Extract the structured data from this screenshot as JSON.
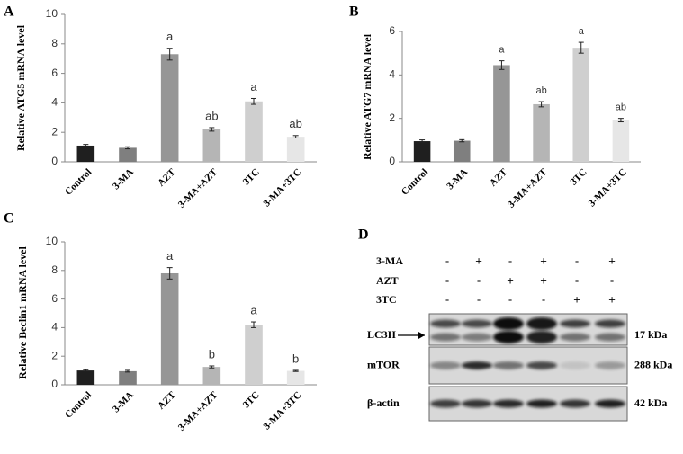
{
  "chart_data": [
    {
      "type": "bar",
      "label": "A",
      "y_label": "Relative ATG5 mRNA level",
      "categories": [
        "Control",
        "3-MA",
        "AZT",
        "3-MA+AZT",
        "3TC",
        "3-MA+3TC"
      ],
      "values": [
        1.1,
        0.95,
        7.3,
        2.2,
        4.1,
        1.7
      ],
      "errors": [
        0.08,
        0.07,
        0.4,
        0.12,
        0.2,
        0.08
      ],
      "annotations": [
        null,
        null,
        "a",
        "ab",
        "a",
        "ab"
      ],
      "colors": [
        "#1f1f1f",
        "#7f7f7f",
        "#969696",
        "#b5b5b5",
        "#cfcfcf",
        "#e6e6e6"
      ],
      "ylim": [
        0,
        10
      ],
      "yticks": [
        0,
        2,
        4,
        6,
        8,
        10
      ]
    },
    {
      "type": "bar",
      "label": "B",
      "y_label": "Relative ATG7 mRNA level",
      "categories": [
        "Control",
        "3-MA",
        "AZT",
        "3-MA+AZT",
        "3TC",
        "3-MA+3TC"
      ],
      "values": [
        0.95,
        0.97,
        4.45,
        2.65,
        5.25,
        1.92
      ],
      "errors": [
        0.06,
        0.05,
        0.2,
        0.12,
        0.25,
        0.08
      ],
      "annotations": [
        null,
        null,
        "a",
        "ab",
        "a",
        "ab"
      ],
      "colors": [
        "#1f1f1f",
        "#7f7f7f",
        "#969696",
        "#b5b5b5",
        "#cfcfcf",
        "#e6e6e6"
      ],
      "ylim": [
        0,
        6
      ],
      "yticks": [
        0,
        2,
        4,
        6
      ]
    },
    {
      "type": "bar",
      "label": "C",
      "y_label": "Relative Beclin1 mRNA level",
      "categories": [
        "Control",
        "3-MA",
        "AZT",
        "3-MA+AZT",
        "3TC",
        "3-MA+3TC"
      ],
      "values": [
        1.0,
        0.95,
        7.8,
        1.25,
        4.2,
        0.97
      ],
      "errors": [
        0.05,
        0.06,
        0.4,
        0.07,
        0.2,
        0.04
      ],
      "annotations": [
        null,
        null,
        "a",
        "b",
        "a",
        "b"
      ],
      "colors": [
        "#1f1f1f",
        "#7f7f7f",
        "#969696",
        "#b5b5b5",
        "#cfcfcf",
        "#e6e6e6"
      ],
      "ylim": [
        0,
        10
      ],
      "yticks": [
        0,
        2,
        4,
        6,
        8,
        10
      ]
    }
  ],
  "blot": {
    "label": "D",
    "treatments": [
      {
        "name": "3-MA",
        "signs": [
          "-",
          "+",
          "-",
          "+",
          "-",
          "+"
        ]
      },
      {
        "name": "AZT",
        "signs": [
          "-",
          "-",
          "+",
          "+",
          "-",
          "-"
        ]
      },
      {
        "name": "3TC",
        "signs": [
          "-",
          "-",
          "-",
          "-",
          "+",
          "+"
        ]
      }
    ],
    "bands": [
      {
        "name": "LC3II",
        "size": "17 kDa"
      },
      {
        "name": "mTOR",
        "size": "288 kDa"
      },
      {
        "name": "β-actin",
        "size": "42 kDa"
      }
    ]
  }
}
